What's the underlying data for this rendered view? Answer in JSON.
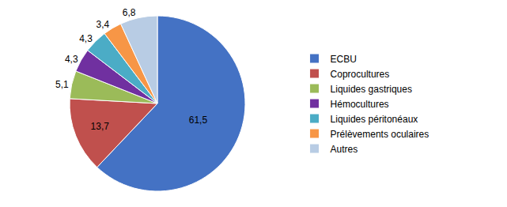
{
  "chart_data": {
    "type": "pie",
    "categories": [
      "ECBU",
      "Coprocultures",
      "Liquides gastriques",
      "Hémocultures",
      "Liquides péritonéaux",
      "Prélèvements oculaires",
      "Autres"
    ],
    "values": [
      61.5,
      13.7,
      5.1,
      4.3,
      4.3,
      3.4,
      6.8
    ],
    "value_labels": [
      "61,5",
      "13,7",
      "5,1",
      "4,3",
      "4,3",
      "3,4",
      "6,8"
    ],
    "colors": [
      "#4472C4",
      "#C0504D",
      "#9BBB59",
      "#7030A0",
      "#4BACC6",
      "#F79646",
      "#B8CCE4"
    ],
    "data_labels": true,
    "legend": "right"
  }
}
